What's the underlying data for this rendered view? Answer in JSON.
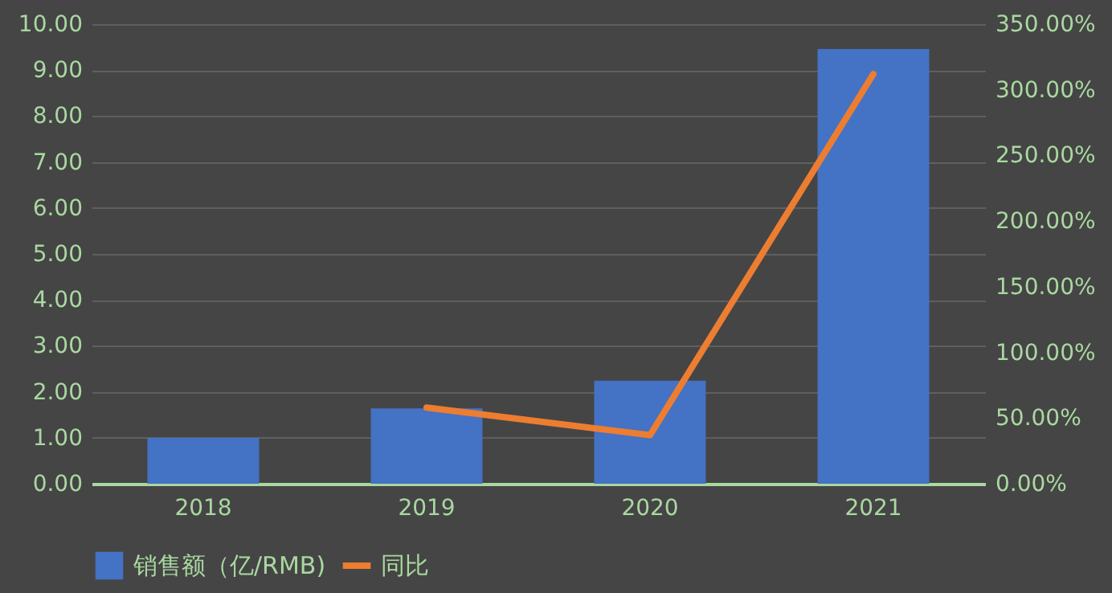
{
  "chart_data": {
    "type": "bar",
    "categories": [
      "2018",
      "2019",
      "2020",
      "2021"
    ],
    "series": [
      {
        "name": "销售额（亿/RMB)",
        "color": "#4472c4",
        "values": [
          1.0,
          1.64,
          2.24,
          9.46
        ]
      },
      {
        "name": "同比",
        "type": "line",
        "axis": "y2",
        "color": "#ed7d31",
        "values": [
          null,
          58,
          37,
          312
        ]
      }
    ],
    "ylim": [
      0,
      10
    ],
    "yticks": [
      {
        "value": 0,
        "label": "0.00"
      },
      {
        "value": 1,
        "label": "1.00"
      },
      {
        "value": 2,
        "label": "2.00"
      },
      {
        "value": 3,
        "label": "3.00"
      },
      {
        "value": 4,
        "label": "4.00"
      },
      {
        "value": 5,
        "label": "5.00"
      },
      {
        "value": 6,
        "label": "6.00"
      },
      {
        "value": 7,
        "label": "7.00"
      },
      {
        "value": 8,
        "label": "8.00"
      },
      {
        "value": 9,
        "label": "9.00"
      },
      {
        "value": 10,
        "label": "10.00"
      }
    ],
    "y2lim": [
      0,
      350
    ],
    "y2ticks": [
      {
        "value": 0,
        "label": "0.00%"
      },
      {
        "value": 50,
        "label": "50.00%"
      },
      {
        "value": 100,
        "label": "100.00%"
      },
      {
        "value": 150,
        "label": "150.00%"
      },
      {
        "value": 200,
        "label": "200.00%"
      },
      {
        "value": 250,
        "label": "250.00%"
      },
      {
        "value": 300,
        "label": "300.00%"
      },
      {
        "value": 350,
        "label": "350.00%"
      }
    ],
    "grid": "y",
    "legend": "bottom",
    "marker": "none",
    "line_style": "solid"
  }
}
